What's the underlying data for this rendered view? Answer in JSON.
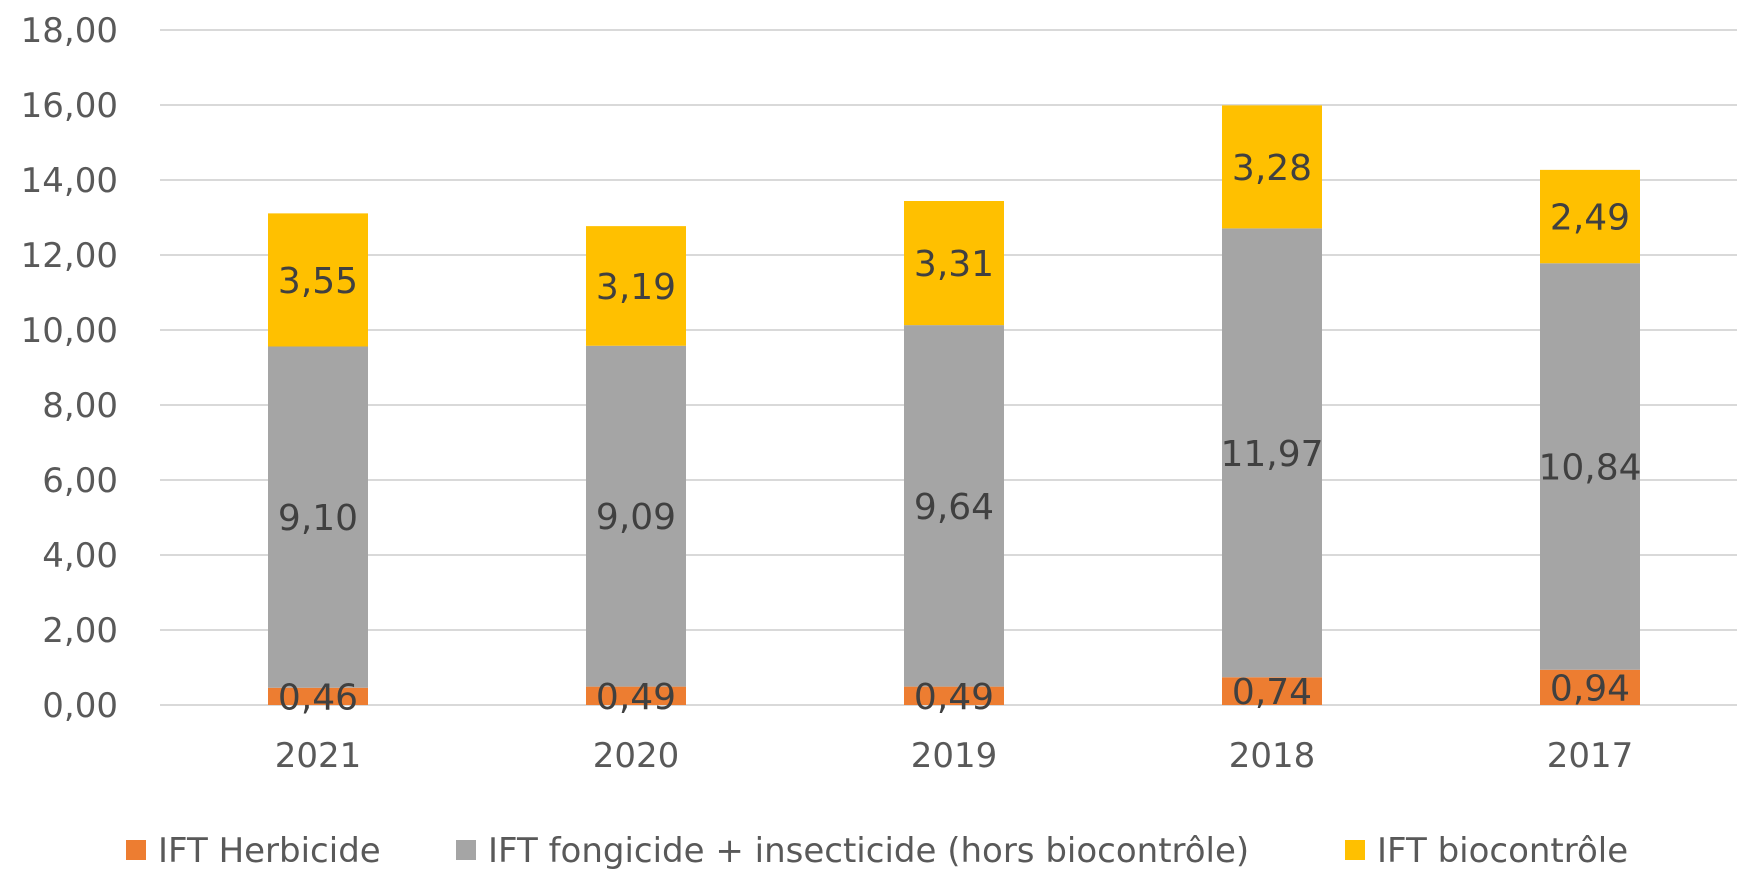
{
  "chart_data": {
    "type": "bar",
    "stacked": true,
    "categories": [
      "2021",
      "2020",
      "2019",
      "2018",
      "2017"
    ],
    "series": [
      {
        "name": "IFT Herbicide",
        "color": "#ED7D31",
        "values": [
          0.46,
          0.49,
          0.49,
          0.74,
          0.94
        ],
        "labels": [
          "0,46",
          "0,49",
          "0,49",
          "0,74",
          "0,94"
        ]
      },
      {
        "name": "IFT fongicide + insecticide (hors biocontrôle)",
        "color": "#A5A5A5",
        "values": [
          9.1,
          9.09,
          9.64,
          11.97,
          10.84
        ],
        "labels": [
          "9,10",
          "9,09",
          "9,64",
          "11,97",
          "10,84"
        ]
      },
      {
        "name": "IFT biocontrôle",
        "color": "#FFC000",
        "values": [
          3.55,
          3.19,
          3.31,
          3.28,
          2.49
        ],
        "labels": [
          "3,55",
          "3,19",
          "3,31",
          "3,28",
          "2,49"
        ]
      }
    ],
    "y_ticks": [
      "0,00",
      "2,00",
      "4,00",
      "6,00",
      "8,00",
      "10,00",
      "12,00",
      "14,00",
      "16,00",
      "18,00"
    ],
    "ylim": [
      0,
      18
    ],
    "grid": true,
    "legend_position": "bottom"
  }
}
